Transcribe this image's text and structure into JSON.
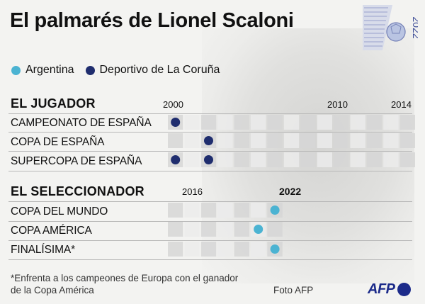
{
  "title": "El palmarés de Lionel Scaloni",
  "logo_text": "2022",
  "colors": {
    "argentina": "#4bb3d2",
    "deportivo": "#1f2d6e",
    "cell": "#d6d6d6",
    "cell_alt": "#ebebeb"
  },
  "legend": [
    {
      "label": "Argentina",
      "color": "#4bb3d2"
    },
    {
      "label": "Deportivo de La Coruña",
      "color": "#1f2d6e"
    }
  ],
  "sections": {
    "player": "EL JUGADOR",
    "coach": "EL SELECCIONADOR"
  },
  "footnote": "*Enfrenta a los campeones de Europa con el ganador de la Copa América",
  "credit": "Foto AFP",
  "agency": "AFP",
  "chart_data": [
    {
      "type": "scatter",
      "title": "EL JUGADOR",
      "x_range": [
        2000,
        2014
      ],
      "tick_labels": [
        "2000",
        "2010",
        "2014"
      ],
      "rows": [
        "CAMPEONATO DE ESPAÑA",
        "COPA DE ESPAÑA",
        "SUPERCOPA DE ESPAÑA"
      ],
      "points": [
        {
          "row": "CAMPEONATO DE ESPAÑA",
          "year": 2000,
          "team": "Deportivo de La Coruña"
        },
        {
          "row": "COPA DE ESPAÑA",
          "year": 2002,
          "team": "Deportivo de La Coruña"
        },
        {
          "row": "SUPERCOPA DE ESPAÑA",
          "year": 2000,
          "team": "Deportivo de La Coruña"
        },
        {
          "row": "SUPERCOPA DE ESPAÑA",
          "year": 2002,
          "team": "Deportivo de La Coruña"
        }
      ]
    },
    {
      "type": "scatter",
      "title": "EL SELECCIONADOR",
      "x_range": [
        2016,
        2022
      ],
      "tick_labels": [
        "2016",
        "2022"
      ],
      "highlight_tick": "2022",
      "rows": [
        "COPA DEL MUNDO",
        "COPA AMÉRICA",
        "FINALÍSIMA*"
      ],
      "points": [
        {
          "row": "COPA DEL MUNDO",
          "year": 2022,
          "team": "Argentina"
        },
        {
          "row": "COPA AMÉRICA",
          "year": 2021,
          "team": "Argentina"
        },
        {
          "row": "FINALÍSIMA*",
          "year": 2022,
          "team": "Argentina"
        }
      ]
    }
  ]
}
